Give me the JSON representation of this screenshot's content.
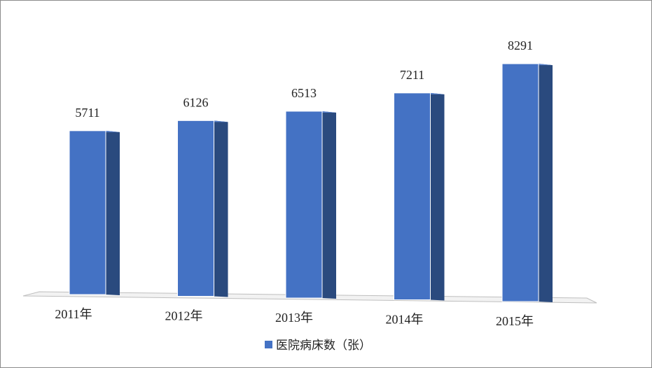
{
  "chart_data": {
    "type": "bar3d",
    "categories": [
      "2011年",
      "2012年",
      "2013年",
      "2014年",
      "2015年"
    ],
    "series": [
      {
        "name": "医院病床数（张）",
        "color": "#4472c4",
        "values": [
          5711,
          6126,
          6513,
          7211,
          8291
        ]
      }
    ],
    "legend": "bottom"
  }
}
